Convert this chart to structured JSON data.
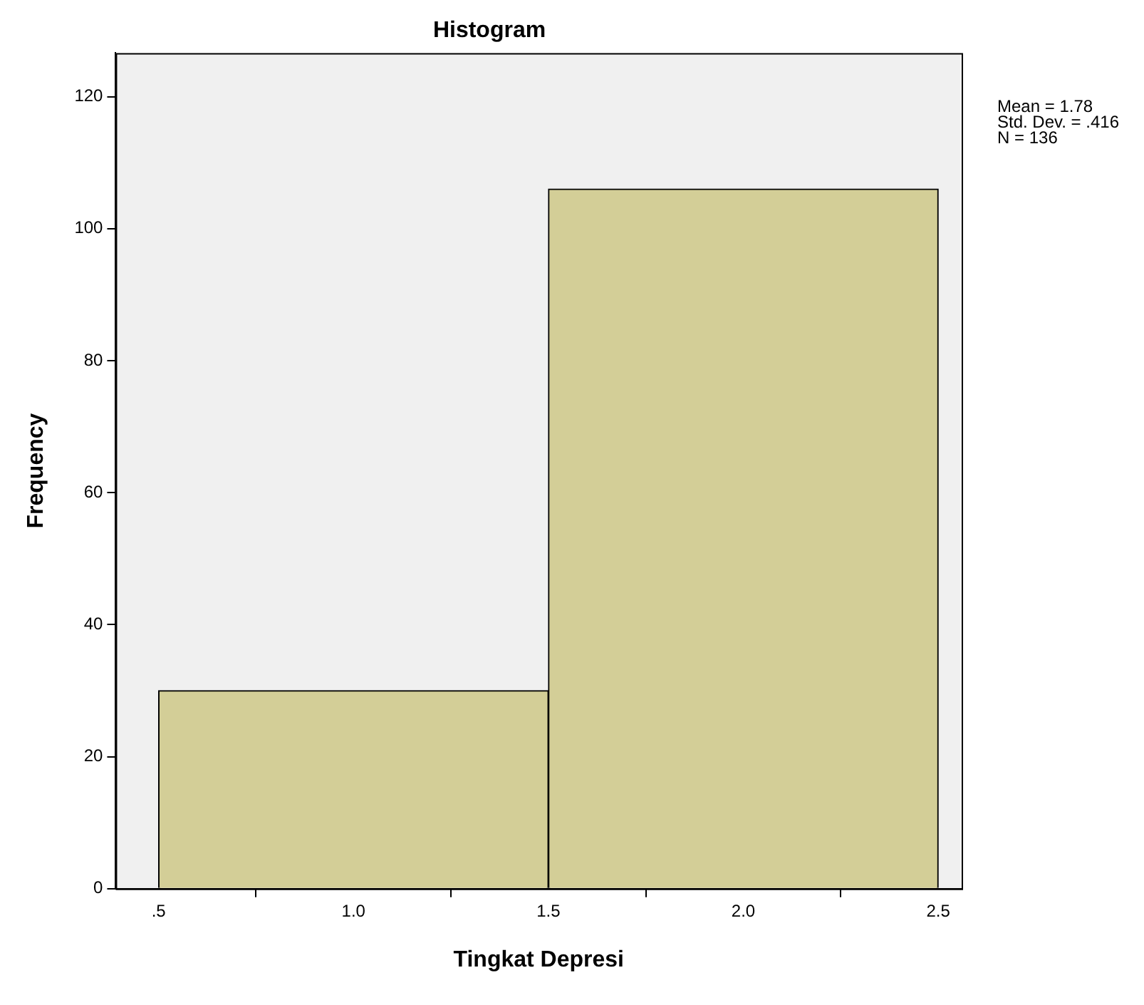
{
  "chart_data": {
    "type": "histogram",
    "title": "Histogram",
    "xlabel": "Tingkat Depresi",
    "ylabel": "Frequency",
    "bins": [
      0.5,
      1.5,
      2.5
    ],
    "values": [
      30,
      106
    ],
    "color": "#d3ce97",
    "xlim": [
      0.39,
      2.56
    ],
    "xticks": [
      {
        "value": 0.5,
        "label": ".5"
      },
      {
        "value": 1.0,
        "label": "1.0"
      },
      {
        "value": 1.5,
        "label": "1.5"
      },
      {
        "value": 2.0,
        "label": "2.0"
      },
      {
        "value": 2.5,
        "label": "2.5"
      }
    ],
    "ylim": [
      0,
      126.6
    ],
    "yticks": [
      0,
      20,
      40,
      60,
      80,
      100,
      120
    ],
    "grid": false,
    "legend": false,
    "annotations": [
      "Mean = 1.78",
      "Std. Dev. = .416",
      "N = 136"
    ]
  }
}
